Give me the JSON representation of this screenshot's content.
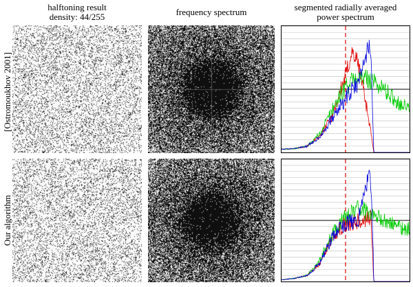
{
  "headers": {
    "halftone_line1": "halftoning result",
    "halftone_line2": "density: 44/255",
    "spectrum": "frequency spectrum",
    "power_line1": "segmented radially averaged",
    "power_line2": "power spectrum"
  },
  "rows": [
    {
      "label": "[Ostromoukhov 2001]"
    },
    {
      "label": "Our algorithm"
    }
  ],
  "colors": {
    "red": "#e00000",
    "green": "#00cc00",
    "blue": "#0000dd",
    "dashed": "#e00000",
    "frame": "#000000"
  },
  "chart_data": [
    {
      "type": "line",
      "title": "[Ostromoukhov 2001]",
      "xlabel": "",
      "ylabel": "",
      "xlim": [
        0,
        1
      ],
      "ylim": [
        0,
        2
      ],
      "grid": "horizontal",
      "reference_line_y": 1.0,
      "dashed_line_x": 0.5,
      "series": [
        {
          "color": "red",
          "points": [
            [
              0,
              0.05
            ],
            [
              0.1,
              0.06
            ],
            [
              0.2,
              0.1
            ],
            [
              0.3,
              0.25
            ],
            [
              0.4,
              0.6
            ],
            [
              0.45,
              0.9
            ],
            [
              0.5,
              1.2
            ],
            [
              0.55,
              1.6
            ],
            [
              0.6,
              1.4
            ],
            [
              0.65,
              0.9
            ],
            [
              0.7,
              0.3
            ],
            [
              0.72,
              0.0
            ],
            [
              1,
              0.0
            ]
          ]
        },
        {
          "color": "green",
          "points": [
            [
              0,
              0.05
            ],
            [
              0.1,
              0.06
            ],
            [
              0.2,
              0.1
            ],
            [
              0.3,
              0.3
            ],
            [
              0.4,
              0.7
            ],
            [
              0.5,
              1.05
            ],
            [
              0.6,
              1.2
            ],
            [
              0.7,
              1.15
            ],
            [
              0.8,
              1.0
            ],
            [
              0.9,
              0.8
            ],
            [
              1,
              0.7
            ]
          ]
        },
        {
          "color": "blue",
          "points": [
            [
              0,
              0.05
            ],
            [
              0.1,
              0.06
            ],
            [
              0.2,
              0.1
            ],
            [
              0.3,
              0.25
            ],
            [
              0.4,
              0.55
            ],
            [
              0.5,
              0.85
            ],
            [
              0.6,
              1.1
            ],
            [
              0.68,
              1.7
            ],
            [
              0.7,
              1.5
            ],
            [
              0.72,
              0.0
            ],
            [
              1,
              0.0
            ]
          ]
        }
      ]
    },
    {
      "type": "line",
      "title": "Our algorithm",
      "xlabel": "",
      "ylabel": "",
      "xlim": [
        0,
        1
      ],
      "ylim": [
        0,
        2
      ],
      "grid": "horizontal",
      "reference_line_y": 1.0,
      "dashed_line_x": 0.5,
      "series": [
        {
          "color": "red",
          "points": [
            [
              0,
              0.03
            ],
            [
              0.1,
              0.05
            ],
            [
              0.2,
              0.1
            ],
            [
              0.3,
              0.3
            ],
            [
              0.4,
              0.75
            ],
            [
              0.5,
              0.95
            ],
            [
              0.6,
              1.0
            ],
            [
              0.7,
              1.05
            ],
            [
              0.72,
              0.0
            ],
            [
              1,
              0.0
            ]
          ]
        },
        {
          "color": "green",
          "points": [
            [
              0,
              0.03
            ],
            [
              0.1,
              0.05
            ],
            [
              0.2,
              0.1
            ],
            [
              0.3,
              0.35
            ],
            [
              0.4,
              0.8
            ],
            [
              0.5,
              1.05
            ],
            [
              0.6,
              1.2
            ],
            [
              0.7,
              1.1
            ],
            [
              0.8,
              1.0
            ],
            [
              0.9,
              0.9
            ],
            [
              1,
              0.85
            ]
          ]
        },
        {
          "color": "blue",
          "points": [
            [
              0,
              0.03
            ],
            [
              0.1,
              0.05
            ],
            [
              0.2,
              0.1
            ],
            [
              0.3,
              0.3
            ],
            [
              0.4,
              0.75
            ],
            [
              0.5,
              0.95
            ],
            [
              0.6,
              1.0
            ],
            [
              0.69,
              1.8
            ],
            [
              0.71,
              1.0
            ],
            [
              0.72,
              0.0
            ],
            [
              1,
              0.0
            ]
          ]
        }
      ]
    }
  ]
}
